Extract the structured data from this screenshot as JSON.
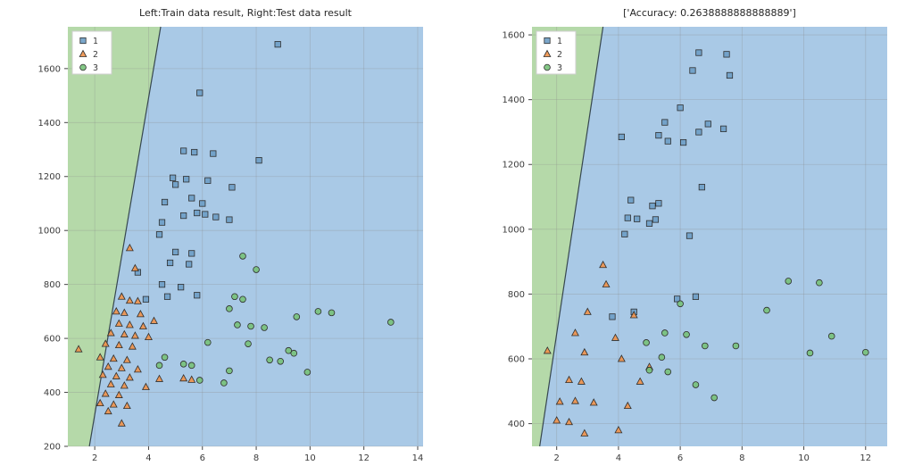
{
  "chart_data": [
    {
      "type": "scatter",
      "title": "Left:Train data result, Right:Test data result",
      "xlabel": "",
      "ylabel": "",
      "xlim": [
        1.0,
        14.2
      ],
      "ylim": [
        200,
        1755
      ],
      "xticks": [
        2,
        4,
        6,
        8,
        10,
        12,
        14
      ],
      "yticks": [
        200,
        400,
        600,
        800,
        1000,
        1200,
        1400,
        1600
      ],
      "grid": true,
      "legend_position": "upper-left",
      "region_colors": {
        "left": "#b5d9a9",
        "right": "#a9c9e6"
      },
      "boundary": {
        "x_at_ymin": 1.8,
        "x_at_ymax": 4.45,
        "color": "#37474f"
      },
      "series": [
        {
          "name": "1",
          "marker": "square",
          "color": "#6d9dc5",
          "points": [
            [
              8.8,
              1690
            ],
            [
              5.9,
              1510
            ],
            [
              5.3,
              1295
            ],
            [
              5.7,
              1290
            ],
            [
              6.4,
              1285
            ],
            [
              8.1,
              1260
            ],
            [
              4.9,
              1195
            ],
            [
              5.4,
              1190
            ],
            [
              6.2,
              1185
            ],
            [
              5.0,
              1170
            ],
            [
              7.1,
              1160
            ],
            [
              5.6,
              1120
            ],
            [
              4.6,
              1105
            ],
            [
              6.0,
              1100
            ],
            [
              5.8,
              1065
            ],
            [
              6.1,
              1060
            ],
            [
              5.3,
              1055
            ],
            [
              6.5,
              1050
            ],
            [
              7.0,
              1040
            ],
            [
              4.5,
              1030
            ],
            [
              4.4,
              985
            ],
            [
              5.0,
              920
            ],
            [
              5.6,
              915
            ],
            [
              4.8,
              880
            ],
            [
              5.5,
              875
            ],
            [
              3.6,
              845
            ],
            [
              4.5,
              800
            ],
            [
              5.2,
              790
            ],
            [
              5.8,
              760
            ],
            [
              4.7,
              755
            ],
            [
              3.9,
              745
            ]
          ]
        },
        {
          "name": "2",
          "marker": "triangle",
          "color": "#ef9149",
          "points": [
            [
              1.4,
              560
            ],
            [
              3.3,
              935
            ],
            [
              3.5,
              860
            ],
            [
              3.0,
              755
            ],
            [
              3.3,
              740
            ],
            [
              3.6,
              738
            ],
            [
              2.8,
              700
            ],
            [
              3.1,
              695
            ],
            [
              3.7,
              690
            ],
            [
              4.2,
              665
            ],
            [
              2.9,
              655
            ],
            [
              3.3,
              650
            ],
            [
              3.8,
              645
            ],
            [
              2.6,
              620
            ],
            [
              3.1,
              615
            ],
            [
              3.5,
              610
            ],
            [
              4.0,
              605
            ],
            [
              2.4,
              580
            ],
            [
              2.9,
              575
            ],
            [
              3.4,
              570
            ],
            [
              2.2,
              530
            ],
            [
              2.7,
              525
            ],
            [
              3.2,
              520
            ],
            [
              2.5,
              495
            ],
            [
              3.0,
              490
            ],
            [
              3.6,
              485
            ],
            [
              2.3,
              465
            ],
            [
              2.8,
              460
            ],
            [
              3.3,
              455
            ],
            [
              4.4,
              450
            ],
            [
              2.6,
              430
            ],
            [
              3.1,
              425
            ],
            [
              3.9,
              420
            ],
            [
              2.4,
              395
            ],
            [
              2.9,
              390
            ],
            [
              2.2,
              360
            ],
            [
              2.7,
              355
            ],
            [
              3.2,
              350
            ],
            [
              2.5,
              330
            ],
            [
              3.0,
              285
            ],
            [
              5.3,
              452
            ],
            [
              5.6,
              447
            ]
          ]
        },
        {
          "name": "3",
          "marker": "circle",
          "color": "#77c179",
          "points": [
            [
              7.5,
              905
            ],
            [
              8.0,
              855
            ],
            [
              7.2,
              755
            ],
            [
              7.5,
              745
            ],
            [
              7.0,
              710
            ],
            [
              10.3,
              700
            ],
            [
              10.8,
              695
            ],
            [
              9.5,
              680
            ],
            [
              13.0,
              660
            ],
            [
              7.3,
              650
            ],
            [
              7.8,
              645
            ],
            [
              8.3,
              640
            ],
            [
              6.2,
              585
            ],
            [
              7.7,
              580
            ],
            [
              9.2,
              555
            ],
            [
              9.4,
              545
            ],
            [
              4.6,
              530
            ],
            [
              8.5,
              520
            ],
            [
              8.9,
              515
            ],
            [
              5.3,
              505
            ],
            [
              5.6,
              500
            ],
            [
              4.4,
              500
            ],
            [
              7.0,
              480
            ],
            [
              9.9,
              475
            ],
            [
              6.8,
              435
            ],
            [
              5.9,
              445
            ]
          ]
        }
      ]
    },
    {
      "type": "scatter",
      "title": "['Accuracy: 0.2638888888888889']",
      "xlabel": "",
      "ylabel": "",
      "xlim": [
        1.2,
        12.7
      ],
      "ylim": [
        330,
        1625
      ],
      "xticks": [
        2,
        4,
        6,
        8,
        10,
        12
      ],
      "yticks": [
        400,
        600,
        800,
        1000,
        1200,
        1400,
        1600
      ],
      "grid": true,
      "legend_position": "upper-left",
      "region_colors": {
        "left": "#b5d9a9",
        "right": "#a9c9e6"
      },
      "boundary": {
        "x_at_ymin": 1.45,
        "x_at_ymax": 3.5,
        "color": "#37474f"
      },
      "series": [
        {
          "name": "1",
          "marker": "square",
          "color": "#6d9dc5",
          "points": [
            [
              6.6,
              1545
            ],
            [
              7.5,
              1540
            ],
            [
              6.4,
              1490
            ],
            [
              7.6,
              1475
            ],
            [
              6.0,
              1375
            ],
            [
              5.5,
              1330
            ],
            [
              6.9,
              1325
            ],
            [
              7.4,
              1310
            ],
            [
              6.6,
              1300
            ],
            [
              5.3,
              1290
            ],
            [
              4.1,
              1285
            ],
            [
              5.6,
              1272
            ],
            [
              6.1,
              1268
            ],
            [
              6.7,
              1130
            ],
            [
              4.4,
              1090
            ],
            [
              5.3,
              1080
            ],
            [
              5.1,
              1072
            ],
            [
              4.3,
              1035
            ],
            [
              4.6,
              1032
            ],
            [
              5.2,
              1030
            ],
            [
              5.0,
              1018
            ],
            [
              4.2,
              985
            ],
            [
              6.3,
              980
            ],
            [
              6.5,
              792
            ],
            [
              5.9,
              785
            ],
            [
              4.5,
              745
            ],
            [
              3.8,
              730
            ]
          ]
        },
        {
          "name": "2",
          "marker": "triangle",
          "color": "#ef9149",
          "points": [
            [
              3.5,
              890
            ],
            [
              3.6,
              830
            ],
            [
              3.0,
              745
            ],
            [
              4.5,
              735
            ],
            [
              2.6,
              680
            ],
            [
              3.9,
              665
            ],
            [
              1.7,
              625
            ],
            [
              2.9,
              620
            ],
            [
              4.1,
              600
            ],
            [
              5.0,
              575
            ],
            [
              2.4,
              535
            ],
            [
              2.8,
              530
            ],
            [
              4.7,
              530
            ],
            [
              2.1,
              468
            ],
            [
              2.6,
              470
            ],
            [
              3.2,
              465
            ],
            [
              4.3,
              455
            ],
            [
              2.0,
              410
            ],
            [
              2.4,
              405
            ],
            [
              2.9,
              370
            ],
            [
              4.0,
              380
            ]
          ]
        },
        {
          "name": "3",
          "marker": "circle",
          "color": "#77c179",
          "points": [
            [
              9.5,
              840
            ],
            [
              10.5,
              835
            ],
            [
              6.0,
              770
            ],
            [
              8.8,
              750
            ],
            [
              5.5,
              680
            ],
            [
              6.2,
              675
            ],
            [
              10.9,
              670
            ],
            [
              4.9,
              650
            ],
            [
              6.8,
              640
            ],
            [
              7.8,
              640
            ],
            [
              5.4,
              605
            ],
            [
              12.0,
              620
            ],
            [
              10.2,
              618
            ],
            [
              5.0,
              565
            ],
            [
              5.6,
              560
            ],
            [
              6.5,
              520
            ],
            [
              7.1,
              480
            ]
          ]
        }
      ]
    }
  ]
}
